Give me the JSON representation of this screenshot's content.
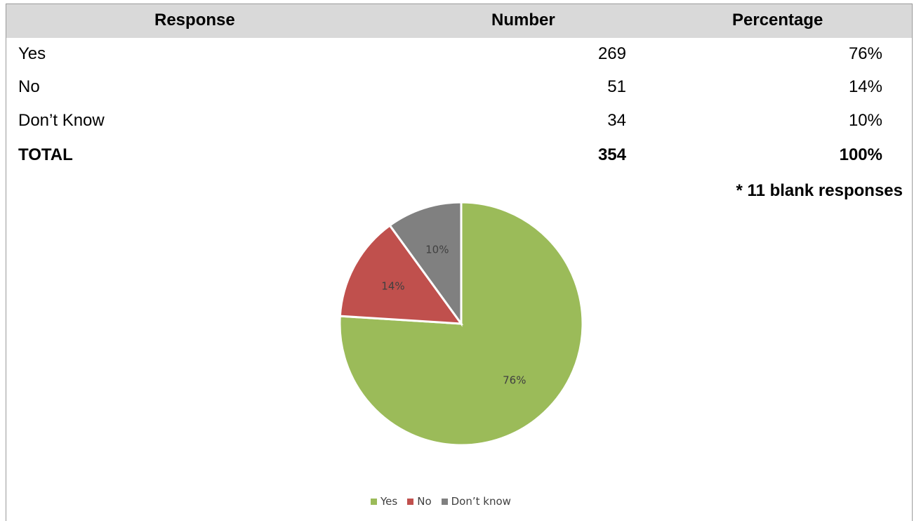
{
  "table": {
    "headers": [
      "Response",
      "Number",
      "Percentage"
    ],
    "rows": [
      {
        "response": "Yes",
        "number": "269",
        "percentage": "76%"
      },
      {
        "response": "No",
        "number": "51",
        "percentage": "14%"
      },
      {
        "response": "Don’t Know",
        "number": "34",
        "percentage": "10%"
      }
    ],
    "total": {
      "response": "TOTAL",
      "number": "354",
      "percentage": "100%"
    },
    "note": "* 11 blank responses"
  },
  "chart_data": {
    "type": "pie",
    "categories": [
      "Yes",
      "No",
      "Don’t know"
    ],
    "values": [
      76,
      14,
      10
    ],
    "data_labels": [
      "76%",
      "14%",
      "10%"
    ],
    "colors": [
      "#9bbb59",
      "#c0504d",
      "#808080"
    ],
    "legend_position": "bottom"
  }
}
